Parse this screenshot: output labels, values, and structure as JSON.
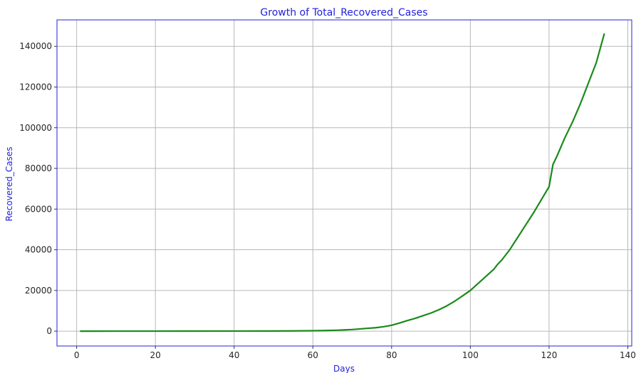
{
  "chart_data": {
    "type": "line",
    "title": "Growth of Total_Recovered_Cases",
    "xlabel": "Days",
    "ylabel": "Recovered_Cases",
    "xlim": [
      -5,
      141
    ],
    "ylim": [
      -7300,
      153000
    ],
    "xticks": [
      0,
      20,
      40,
      60,
      80,
      100,
      120,
      140
    ],
    "yticks": [
      0,
      20000,
      40000,
      60000,
      80000,
      100000,
      120000,
      140000
    ],
    "grid": true,
    "colors": {
      "line": "#1a8a1a",
      "axes_frame": "#2222dd",
      "title": "#2222dd",
      "axis_titles": "#2222dd",
      "grid": "#b8b8b8"
    },
    "series": [
      {
        "x": [
          1,
          10,
          20,
          30,
          40,
          50,
          55,
          60,
          63,
          66,
          68,
          70,
          72,
          74,
          76,
          78,
          80,
          82,
          84,
          86,
          88,
          90,
          92,
          94,
          96,
          98,
          100,
          102,
          104,
          106,
          107,
          108,
          110,
          112,
          114,
          116,
          118,
          120,
          121,
          122,
          124,
          126,
          128,
          130,
          132,
          133,
          134
        ],
        "y": [
          0,
          10,
          20,
          30,
          50,
          80,
          120,
          200,
          300,
          450,
          600,
          800,
          1100,
          1400,
          1700,
          2200,
          2900,
          4000,
          5200,
          6300,
          7600,
          8900,
          10500,
          12400,
          14700,
          17300,
          20000,
          23500,
          27000,
          30500,
          33000,
          35000,
          40000,
          46000,
          52000,
          58000,
          64500,
          71000,
          82000,
          86000,
          95000,
          103000,
          112000,
          122000,
          132000,
          139000,
          146000
        ]
      }
    ]
  }
}
